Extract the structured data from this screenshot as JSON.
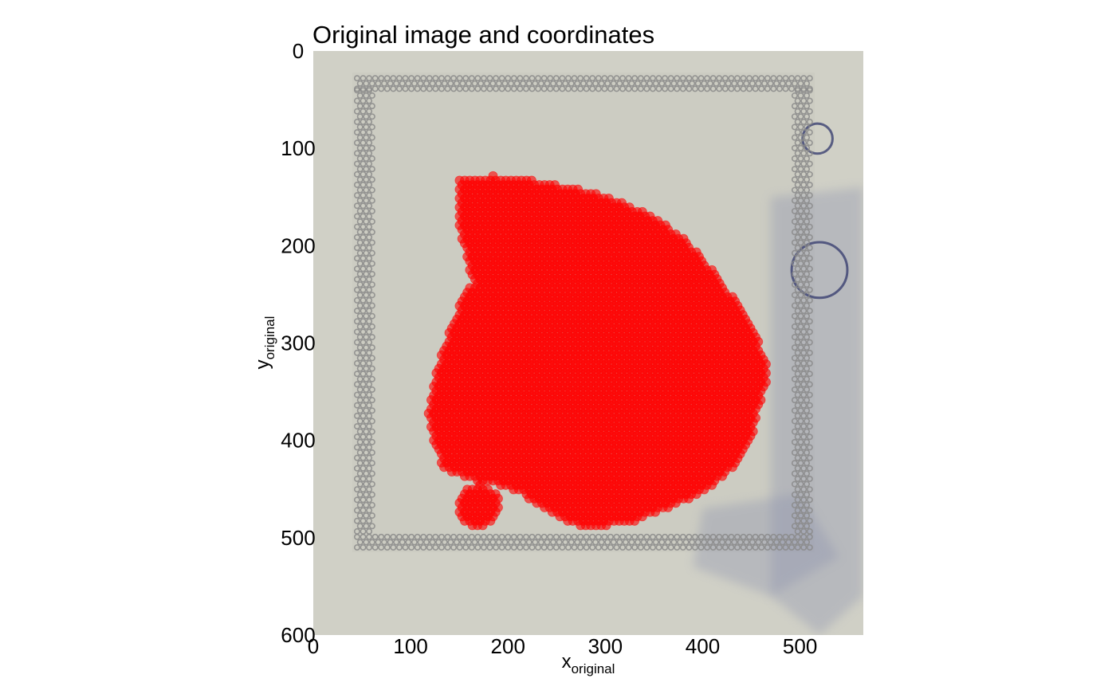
{
  "chart_data": {
    "type": "scatter",
    "title": "Original image and coordinates",
    "xlabel": {
      "main": "x",
      "sub": "original"
    },
    "ylabel": {
      "main": "y",
      "sub": "original"
    },
    "xlim": [
      0,
      565
    ],
    "ylim": [
      600,
      0
    ],
    "x_ticks": [
      0,
      100,
      200,
      300,
      400,
      500
    ],
    "y_ticks": [
      0,
      100,
      200,
      300,
      400,
      500,
      600
    ],
    "grid": false,
    "legend": "none",
    "background": "tissue-image",
    "point_color": "#ff0000",
    "point_opacity": 0.6,
    "image_colors": {
      "slide": "#d0d0c6",
      "tissue": "#ccccc2",
      "fiducial": "#8a8a8a",
      "stain": "#8a90ad"
    },
    "spot_region": {
      "outline_main": [
        [
          150,
          132
        ],
        [
          185,
          128
        ],
        [
          240,
          135
        ],
        [
          300,
          148
        ],
        [
          350,
          170
        ],
        [
          385,
          195
        ],
        [
          410,
          225
        ],
        [
          440,
          265
        ],
        [
          458,
          300
        ],
        [
          468,
          330
        ],
        [
          460,
          360
        ],
        [
          450,
          400
        ],
        [
          430,
          430
        ],
        [
          405,
          450
        ],
        [
          370,
          468
        ],
        [
          330,
          483
        ],
        [
          290,
          490
        ],
        [
          260,
          485
        ],
        [
          235,
          470
        ],
        [
          215,
          455
        ],
        [
          190,
          445
        ],
        [
          160,
          440
        ],
        [
          135,
          430
        ],
        [
          125,
          410
        ],
        [
          118,
          370
        ],
        [
          125,
          330
        ],
        [
          135,
          300
        ],
        [
          148,
          270
        ],
        [
          152,
          250
        ],
        [
          165,
          240
        ],
        [
          148,
          180
        ]
      ],
      "outline_small": [
        [
          148,
          460
        ],
        [
          158,
          447
        ],
        [
          175,
          445
        ],
        [
          190,
          455
        ],
        [
          192,
          472
        ],
        [
          180,
          487
        ],
        [
          163,
          490
        ],
        [
          150,
          478
        ]
      ],
      "spot_radius": 4.6
    },
    "fiducial_frame": {
      "x_min": 45,
      "x_max": 510,
      "y_min": 28,
      "y_max": 510,
      "spacing": 6.2,
      "rows_top": 3,
      "rows_side": 3
    }
  }
}
